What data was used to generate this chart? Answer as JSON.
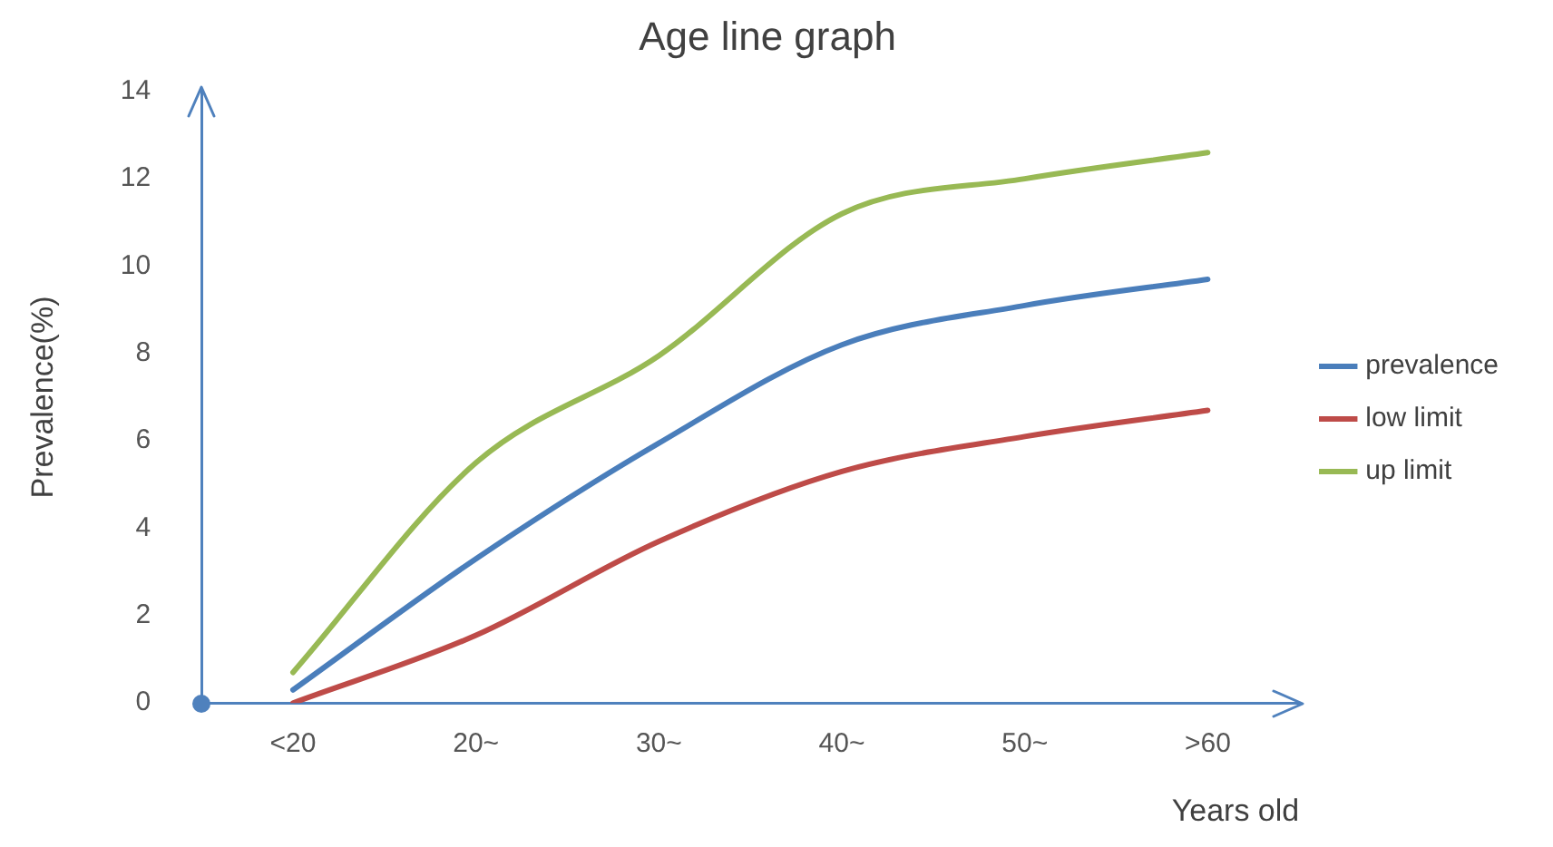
{
  "chart_data": {
    "type": "line",
    "title": "Age line graph",
    "xlabel": "Years old",
    "ylabel": "Prevalence(%)",
    "categories": [
      "<20",
      "20~",
      "30~",
      "40~",
      "50~",
      ">60"
    ],
    "series": [
      {
        "name": "prevalence",
        "color": "#4a7ebb",
        "values": [
          0.3,
          3.3,
          5.95,
          8.2,
          9.1,
          9.7
        ]
      },
      {
        "name": "low limit",
        "color": "#be4b48",
        "values": [
          0,
          1.55,
          3.7,
          5.3,
          6.1,
          6.7
        ]
      },
      {
        "name": "up limit",
        "color": "#98b954",
        "values": [
          0.7,
          5.5,
          7.95,
          11.2,
          12.0,
          12.6
        ]
      }
    ],
    "ylim": [
      0,
      14
    ],
    "yticks": [
      0,
      2,
      4,
      6,
      8,
      10,
      12,
      14
    ],
    "grid": false,
    "legend": "right",
    "marker": "none",
    "line_style": "solid"
  }
}
